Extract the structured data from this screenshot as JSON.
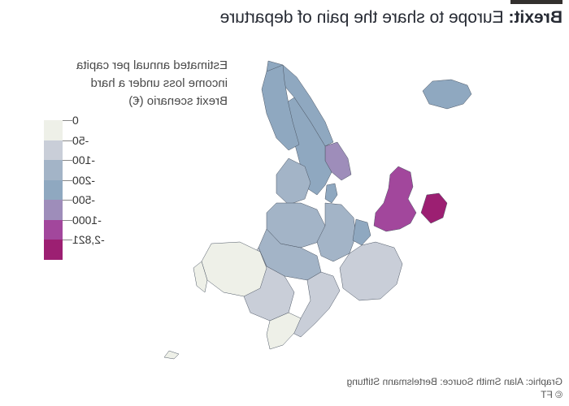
{
  "header": {
    "title_bold": "Brexit:",
    "title_rest": " Europe to share the pain of departure"
  },
  "legend": {
    "title": "Estimated annual per capita income loss under a hard Brexit scenario (€)",
    "labels": [
      "0",
      "-50",
      "-100",
      "-200",
      "-500",
      "-1000",
      "-2,821"
    ],
    "colors": [
      "#eef0e8",
      "#c9ced8",
      "#a3b4c7",
      "#8fa8c0",
      "#9e8dba",
      "#a2479c",
      "#9c1f72"
    ]
  },
  "map": {
    "colors": {
      "ireland": "#9c1f72",
      "uk": "#a2479c",
      "nordic": "#8fa8c0",
      "southnorway": "#9e8dba",
      "iceland": "#8fa8c0",
      "baltics": "#a3b4c7",
      "central": "#a3b4c7",
      "benelux": "#8fa8c0",
      "east": "#c9ced8",
      "iberia": "#eef0e8",
      "south": "#eef0e8",
      "italy": "#c9ced8",
      "border": "#4b5563"
    }
  },
  "footer": {
    "credit": "Graphic: Alan Smith   Source: Bertelsmann Stiftung",
    "copyright": "© FT"
  }
}
